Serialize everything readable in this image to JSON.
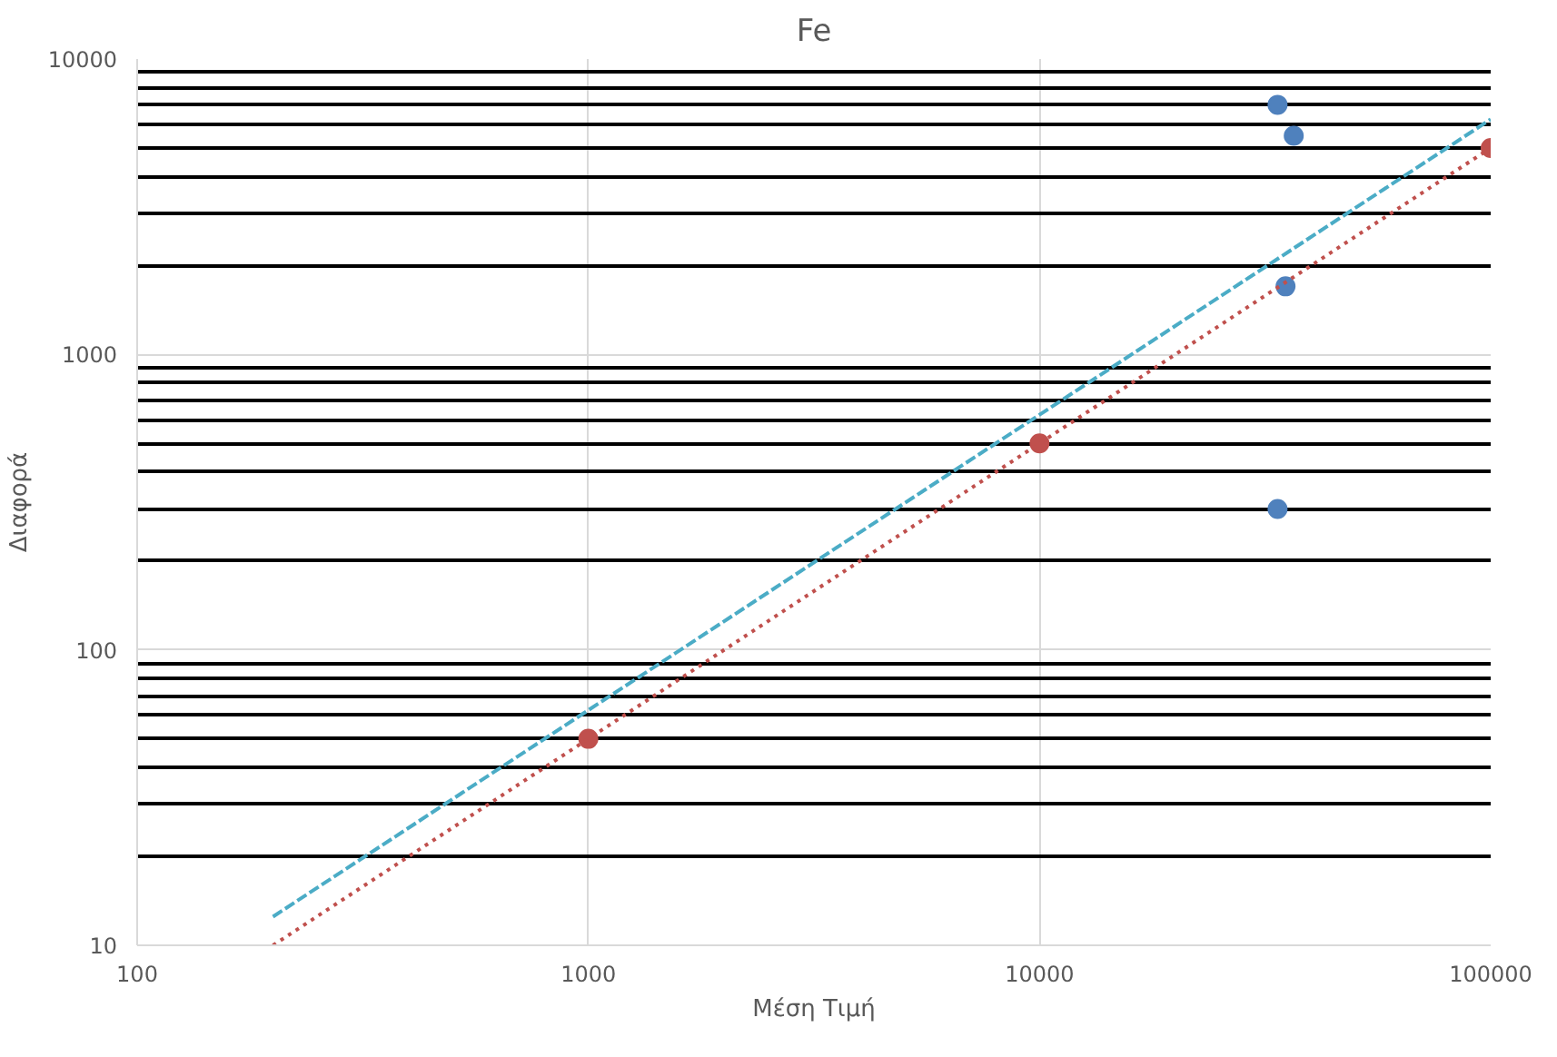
{
  "chart_data": {
    "type": "scatter",
    "title": "Fe",
    "xlabel": "Μέση Τιμή",
    "ylabel": "Διαφορά",
    "log": "xy",
    "grid": true,
    "marker": "circle",
    "xlim": [
      100,
      100000
    ],
    "xticks": [
      100,
      1000,
      10000,
      100000
    ],
    "ylim": [
      10,
      10000
    ],
    "yticks": [
      10,
      100,
      1000,
      10000
    ],
    "series": [
      {
        "color": "#4f81bd",
        "x": [
          33700,
          36600,
          35100,
          33700
        ],
        "values": [
          7000,
          5500,
          1700,
          300
        ]
      },
      {
        "color": "#c0504d",
        "x": [
          1000,
          10000,
          100000
        ],
        "values": [
          50,
          500,
          5000
        ]
      },
      {
        "type": "line",
        "color": "#4bacc6",
        "line_style": "dashed",
        "marker": "none",
        "x": [
          200,
          100000
        ],
        "values": [
          12.5,
          6250
        ]
      },
      {
        "type": "line",
        "color": "#c0504d",
        "line_style": "dotted",
        "marker": "none",
        "x": [
          200,
          100000
        ],
        "values": [
          10,
          5000
        ]
      }
    ]
  }
}
